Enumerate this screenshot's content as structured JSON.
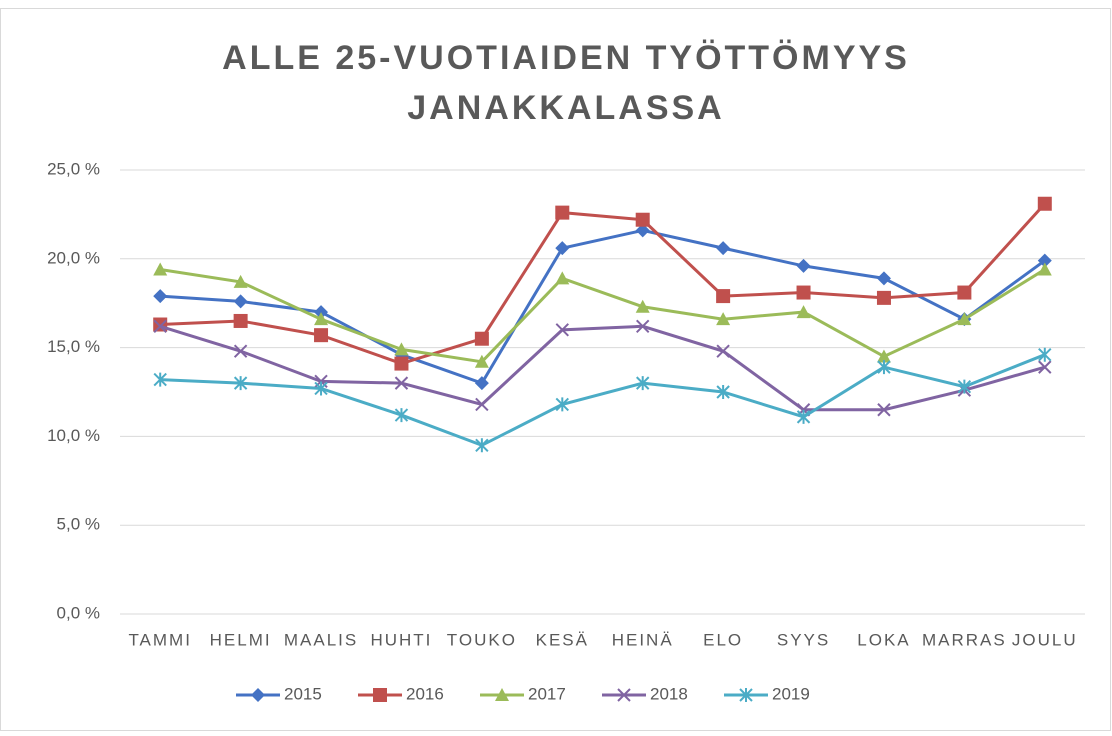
{
  "chart_data": {
    "type": "line",
    "title": [
      "ALLE 25-VUOTIAIDEN TYÖTTÖMYYS",
      "JANAKKALASSA"
    ],
    "categories": [
      "TAMMI",
      "HELMI",
      "MAALIS",
      "HUHTI",
      "TOUKO",
      "KESÄ",
      "HEINÄ",
      "ELO",
      "SYYS",
      "LOKA",
      "MARRAS",
      "JOULU"
    ],
    "series": [
      {
        "name": "2015",
        "color": "#4472c4",
        "marker": "diamond",
        "values": [
          17.9,
          17.6,
          17.0,
          14.6,
          13.0,
          20.6,
          21.6,
          20.6,
          19.6,
          18.9,
          16.6,
          19.9
        ]
      },
      {
        "name": "2016",
        "color": "#c0504d",
        "marker": "square",
        "values": [
          16.3,
          16.5,
          15.7,
          14.1,
          15.5,
          22.6,
          22.2,
          17.9,
          18.1,
          17.8,
          18.1,
          23.1
        ]
      },
      {
        "name": "2017",
        "color": "#9bbb59",
        "marker": "triangle",
        "values": [
          19.4,
          18.7,
          16.6,
          14.9,
          14.2,
          18.9,
          17.3,
          16.6,
          17.0,
          14.5,
          16.6,
          19.4
        ]
      },
      {
        "name": "2018",
        "color": "#8064a2",
        "marker": "x",
        "values": [
          16.2,
          14.8,
          13.1,
          13.0,
          11.8,
          16.0,
          16.2,
          14.8,
          11.5,
          11.5,
          12.6,
          13.9
        ]
      },
      {
        "name": "2019",
        "color": "#4bacc6",
        "marker": "star",
        "values": [
          13.2,
          13.0,
          12.7,
          11.2,
          9.5,
          11.8,
          13.0,
          12.5,
          11.1,
          13.9,
          12.8,
          14.6
        ]
      }
    ],
    "ylim": [
      0,
      25
    ],
    "yticks": [
      {
        "value": 0,
        "label": "0,0 %"
      },
      {
        "value": 5,
        "label": "5,0 %"
      },
      {
        "value": 10,
        "label": "10,0 %"
      },
      {
        "value": 15,
        "label": "15,0 %"
      },
      {
        "value": 20,
        "label": "20,0 %"
      },
      {
        "value": 25,
        "label": "25,0 %"
      }
    ],
    "grid": true,
    "legend": "bottom"
  }
}
